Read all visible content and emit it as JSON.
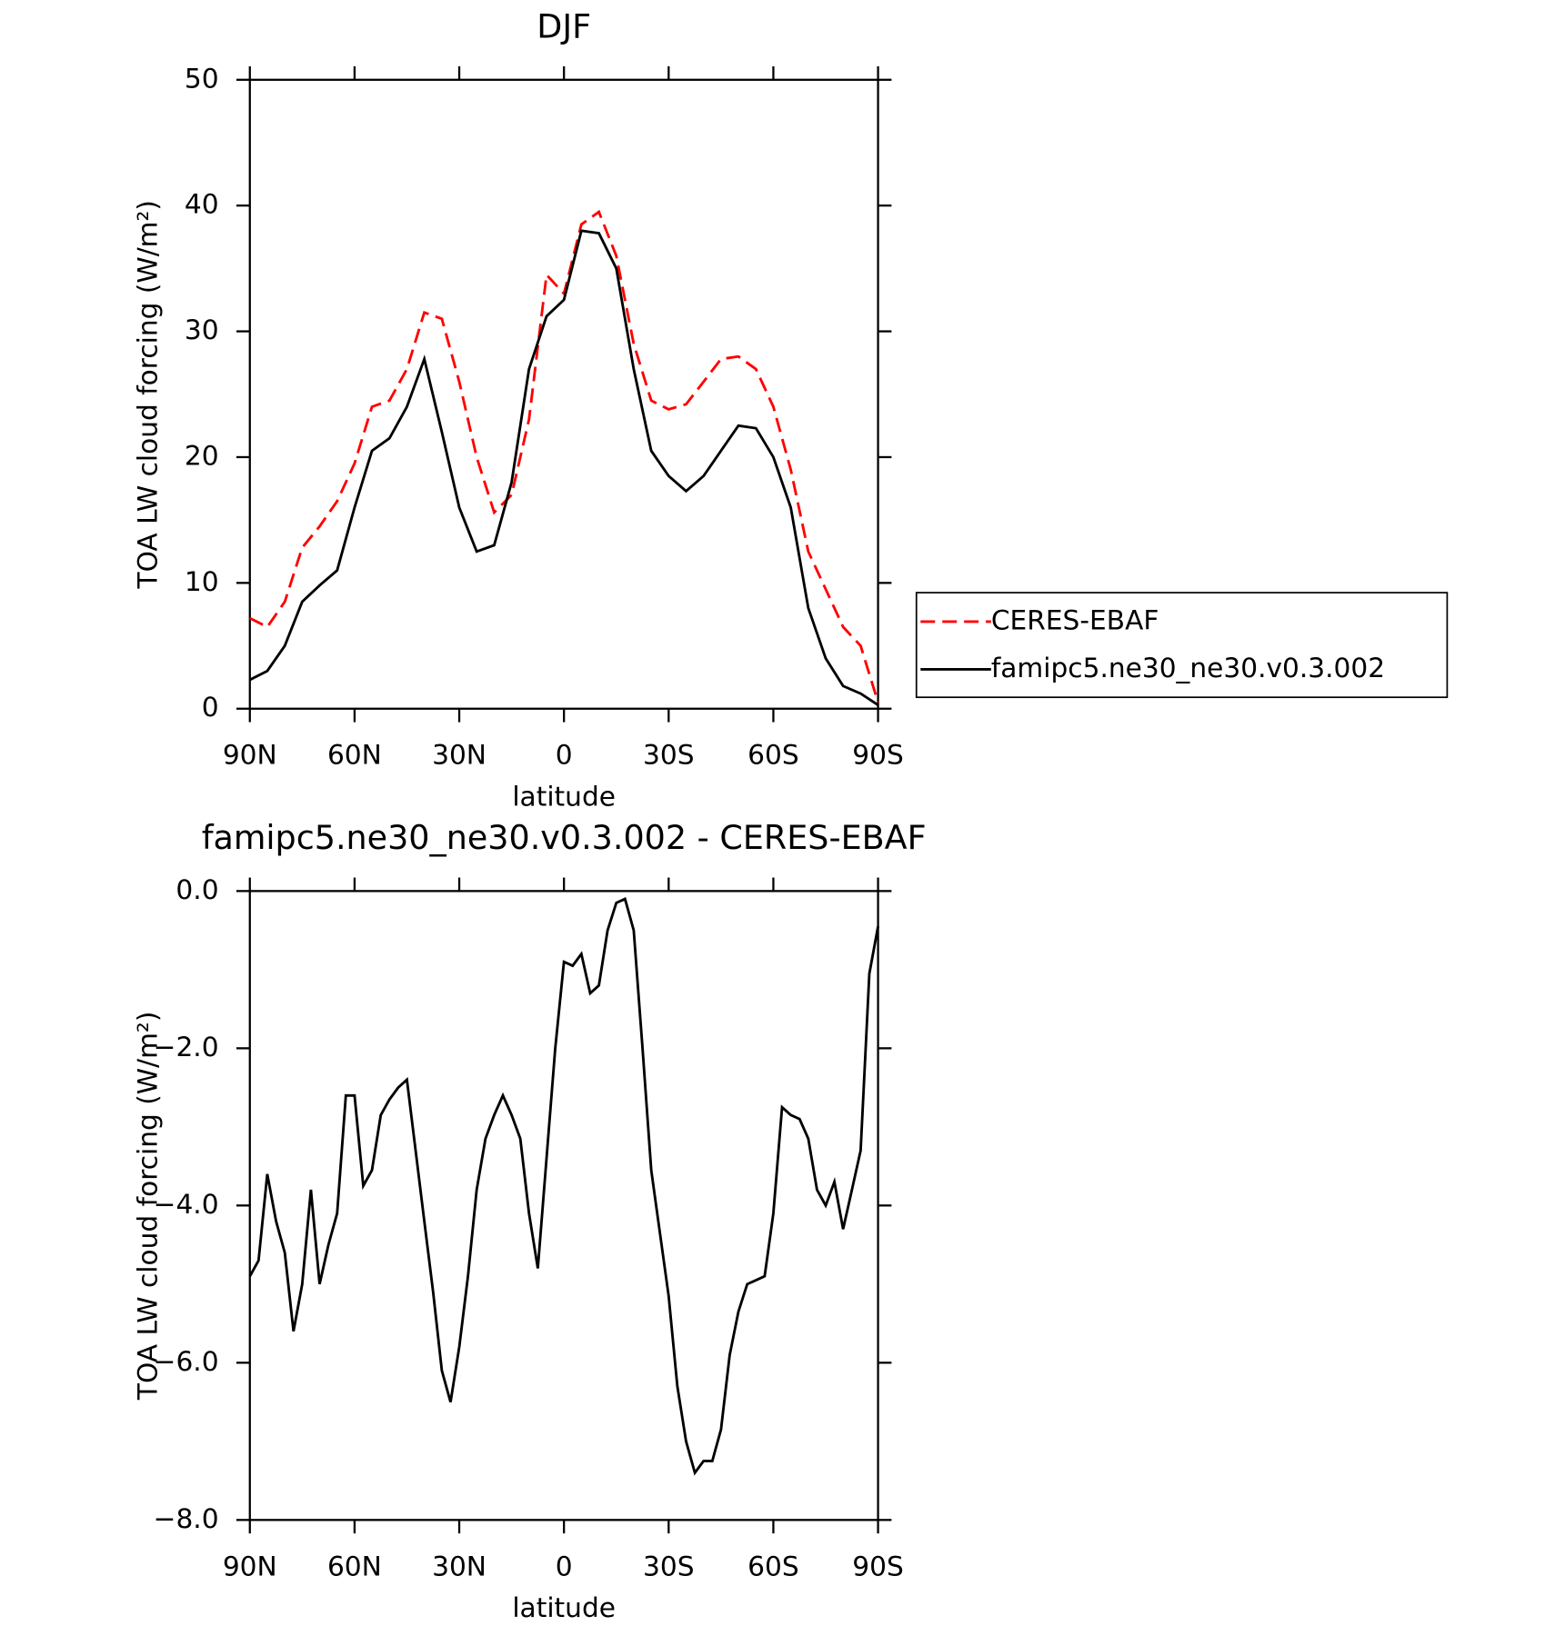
{
  "chart_data": [
    {
      "type": "line",
      "title": "DJF",
      "xlabel": "latitude",
      "ylabel": "TOA LW cloud forcing (W/m²)",
      "x": [
        90,
        85,
        80,
        75,
        70,
        65,
        60,
        55,
        50,
        45,
        40,
        35,
        30,
        25,
        20,
        15,
        10,
        5,
        0,
        -5,
        -10,
        -15,
        -20,
        -25,
        -30,
        -35,
        -40,
        -45,
        -50,
        -55,
        -60,
        -65,
        -70,
        -75,
        -80,
        -85,
        -90
      ],
      "series": [
        {
          "name": "CERES-EBAF",
          "color": "#ff0000",
          "dash": true,
          "values": [
            7.2,
            6.5,
            8.5,
            12.8,
            14.5,
            16.5,
            19.5,
            24,
            24.5,
            27,
            31.5,
            31,
            26,
            20,
            15.6,
            17,
            23,
            34.5,
            33,
            38.5,
            39.5,
            36,
            29,
            24.5,
            23.8,
            24.2,
            26,
            27.8,
            28,
            27,
            24,
            19,
            12.5,
            9.5,
            6.5,
            5,
            0.5
          ]
        },
        {
          "name": "famipc5.ne30_ne30.v0.3.002",
          "color": "#000000",
          "dash": false,
          "values": [
            2.3,
            3.0,
            5,
            8.5,
            9.8,
            11,
            16,
            20.5,
            21.5,
            24,
            27.8,
            22,
            16,
            12.5,
            13,
            18,
            27,
            31.2,
            32.5,
            38,
            37.8,
            35,
            27,
            20.5,
            18.5,
            17.3,
            18.5,
            20.5,
            22.5,
            22.3,
            20,
            16,
            8,
            4,
            1.8,
            1.2,
            0.3
          ]
        }
      ],
      "xlim": [
        90,
        -90
      ],
      "xticks": [
        {
          "value": 90,
          "label": "90N"
        },
        {
          "value": 60,
          "label": "60N"
        },
        {
          "value": 30,
          "label": "30N"
        },
        0,
        {
          "value": -30,
          "label": "30S"
        },
        {
          "value": -60,
          "label": "60S"
        },
        {
          "value": -90,
          "label": "90S"
        }
      ],
      "ylim": [
        0,
        50
      ],
      "yticks": [
        0,
        10,
        20,
        30,
        40,
        50
      ],
      "legend": "right"
    },
    {
      "type": "line",
      "title": "famipc5.ne30_ne30.v0.3.002 - CERES-EBAF",
      "xlabel": "latitude",
      "ylabel": "TOA LW cloud forcing (W/m²)",
      "x": [
        90,
        87.5,
        85,
        82.5,
        80,
        77.5,
        75,
        72.5,
        70,
        67.5,
        65,
        62.5,
        60,
        57.5,
        55,
        52.5,
        50,
        47.5,
        45,
        42.5,
        40,
        37.5,
        35,
        32.5,
        30,
        27.5,
        25,
        22.5,
        20,
        17.5,
        15,
        12.5,
        10,
        7.5,
        5,
        2.5,
        0,
        -2.5,
        -5,
        -7.5,
        -10,
        -12.5,
        -15,
        -17.5,
        -20,
        -22.5,
        -25,
        -27.5,
        -30,
        -32.5,
        -35,
        -37.5,
        -40,
        -42.5,
        -45,
        -47.5,
        -50,
        -52.5,
        -55,
        -57.5,
        -60,
        -62.5,
        -65,
        -67.5,
        -70,
        -72.5,
        -75,
        -77.5,
        -80,
        -82.5,
        -85,
        -87.5,
        -90
      ],
      "series": [
        {
          "name": null,
          "color": "#000000",
          "dash": false,
          "values": [
            -4.9,
            -4.7,
            -3.6,
            -4.2,
            -4.6,
            -5.6,
            -5.0,
            -3.8,
            -5.0,
            -4.5,
            -4.1,
            -2.6,
            -2.6,
            -3.75,
            -3.55,
            -2.85,
            -2.65,
            -2.5,
            -2.4,
            -3.3,
            -4.2,
            -5.1,
            -6.1,
            -6.5,
            -5.8,
            -4.9,
            -3.8,
            -3.15,
            -2.85,
            -2.6,
            -2.85,
            -3.15,
            -4.1,
            -4.8,
            -3.4,
            -2.0,
            -0.9,
            -0.95,
            -0.8,
            -1.3,
            -1.2,
            -0.5,
            -0.15,
            -0.1,
            -0.5,
            -2.0,
            -3.55,
            -4.35,
            -5.15,
            -6.3,
            -7.0,
            -7.4,
            -7.25,
            -7.25,
            -6.85,
            -5.9,
            -5.35,
            -5.0,
            -4.95,
            -4.9,
            -4.1,
            -2.75,
            -2.85,
            -2.9,
            -3.15,
            -3.8,
            -4.0,
            -3.7,
            -4.3,
            -3.8,
            -3.3,
            -1.05,
            -0.45
          ]
        }
      ],
      "xlim": [
        90,
        -90
      ],
      "xticks": [
        {
          "value": 90,
          "label": "90N"
        },
        {
          "value": 60,
          "label": "60N"
        },
        {
          "value": 30,
          "label": "30N"
        },
        0,
        {
          "value": -30,
          "label": "30S"
        },
        {
          "value": -60,
          "label": "60S"
        },
        {
          "value": -90,
          "label": "90S"
        }
      ],
      "ylim": [
        -8,
        0
      ],
      "yticks": [
        {
          "value": 0,
          "label": "0.0"
        },
        {
          "value": -2,
          "label": "−2.0"
        },
        {
          "value": -4,
          "label": "−4.0"
        },
        {
          "value": -6,
          "label": "−6.0"
        },
        {
          "value": -8,
          "label": "−8.0"
        }
      ]
    }
  ]
}
